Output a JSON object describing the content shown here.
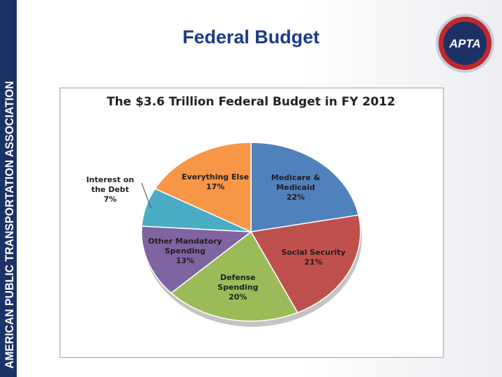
{
  "slide": {
    "title": "Federal Budget",
    "side_text": "AMERICAN PUBLIC TRANSPORTATION ASSOCIATION",
    "logo": "APTA"
  },
  "chart_data": {
    "type": "pie",
    "title": "The $3.6 Trillion Federal Budget in FY 2012",
    "categories": [
      "Medicare & Medicaid",
      "Social Security",
      "Defense Spending",
      "Other Mandatory Spending",
      "Interest on the Debt",
      "Everything Else"
    ],
    "values": [
      22,
      21,
      20,
      13,
      7,
      17
    ],
    "value_labels": [
      "22%",
      "21%",
      "20%",
      "13%",
      "7%",
      "17%"
    ],
    "colors": [
      "#4f81bd",
      "#c0504d",
      "#9bbb59",
      "#8064a2",
      "#4bacc6",
      "#f79646"
    ]
  }
}
